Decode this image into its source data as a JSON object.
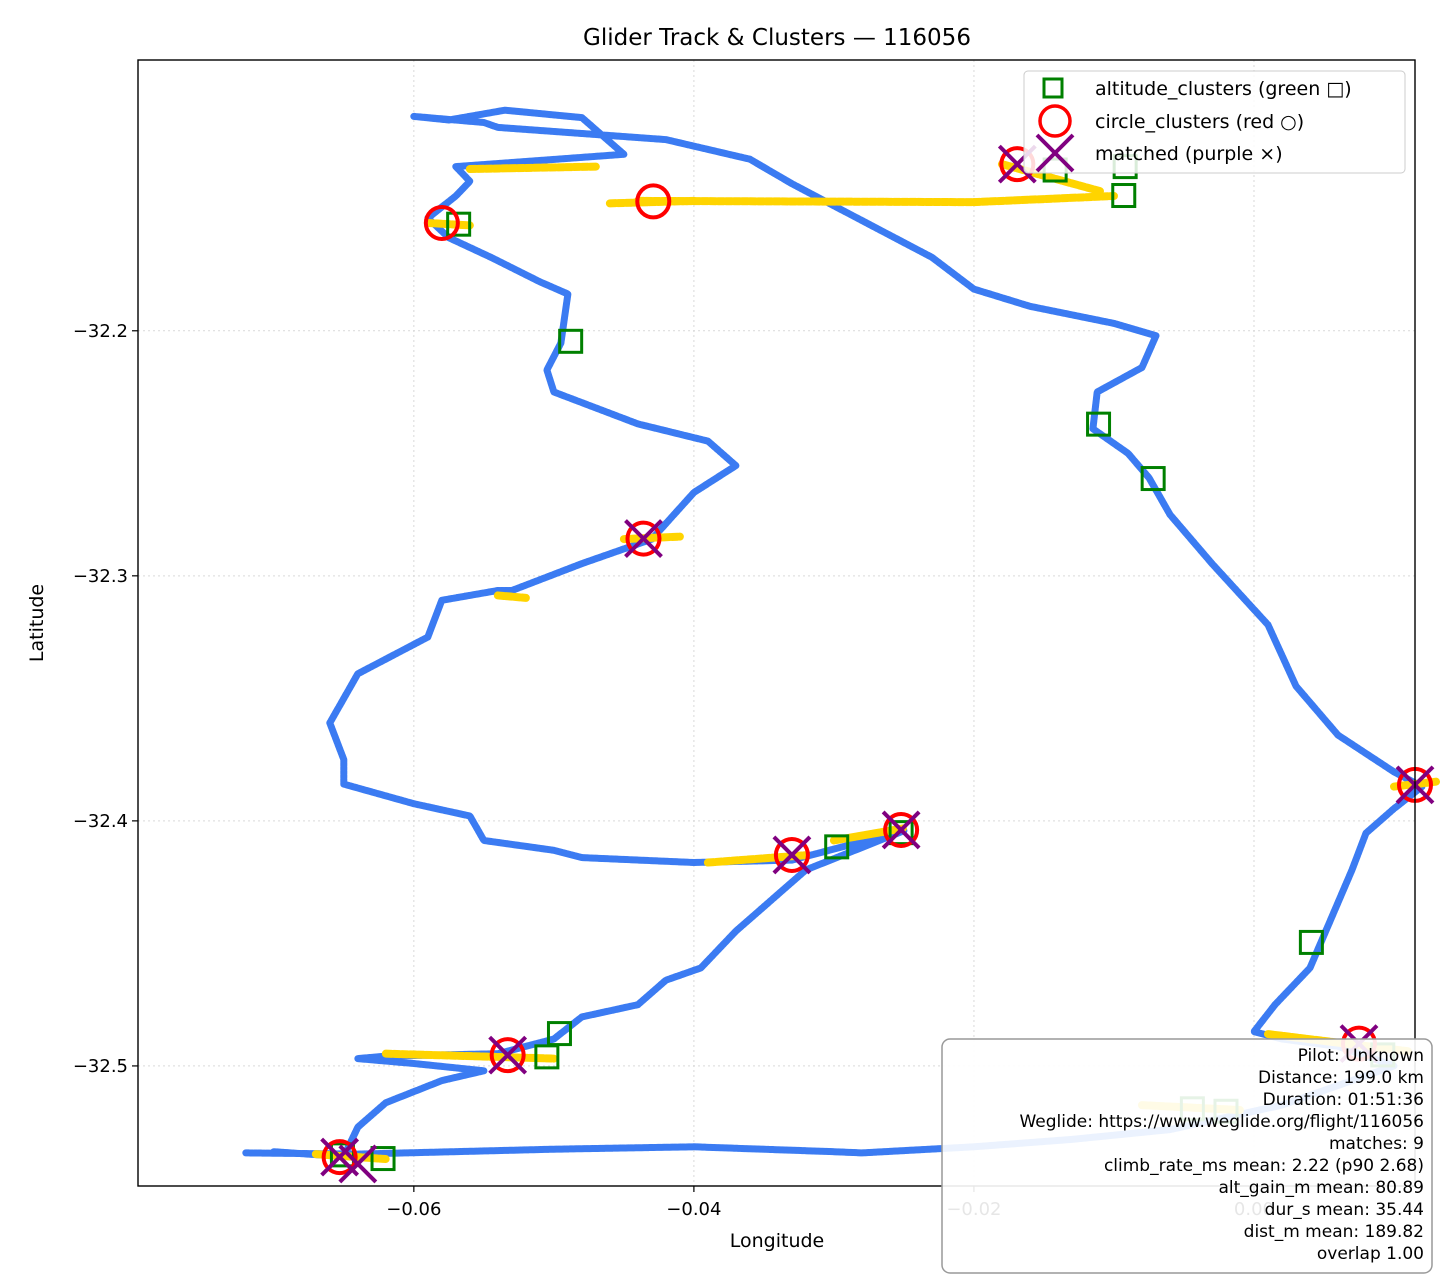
{
  "chart_data": {
    "type": "scatter",
    "title": "Glider Track & Clusters — 116056",
    "xlabel": "Longitude",
    "ylabel": "Latitude",
    "xlim": [
      -0.0797,
      0.0115
    ],
    "ylim": [
      -32.549,
      -32.0895
    ],
    "xticks": [
      -0.06,
      -0.04,
      -0.02,
      0.0
    ],
    "xtick_labels": [
      "−0.06",
      "−0.04",
      "−0.02",
      "0.00"
    ],
    "yticks": [
      -32.2,
      -32.3,
      -32.4,
      -32.5
    ],
    "ytick_labels": [
      "−32.2",
      "−32.3",
      "−32.4",
      "−32.5"
    ],
    "grid": true,
    "legend_placement": "upper-right",
    "colors": {
      "track_cruise": "#3b7bf2",
      "track_climb": "#ffd400",
      "altitude": "#008000",
      "circle": "#ff0000",
      "matched": "#800080",
      "grid": "#d9d9d9"
    },
    "series": [
      {
        "name": "altitude_clusters (green □)",
        "marker": "square",
        "x": [
          -0.0568,
          -0.0488,
          -0.0142,
          -0.0093,
          -0.0111,
          -0.0072,
          0.0041,
          -0.0092,
          -0.0298,
          -0.0252,
          -0.0496,
          -0.0505,
          -0.0651,
          -0.0622,
          -0.0044,
          -0.002,
          0.0092
        ],
        "y": [
          -32.1565,
          -32.2043,
          -32.1344,
          -32.1448,
          -32.2381,
          -32.2603,
          -32.4496,
          -32.133,
          -32.4106,
          -32.4048,
          -32.4868,
          -32.4963,
          -32.5363,
          -32.5378,
          -32.5175,
          -32.5185,
          -32.4955
        ]
      },
      {
        "name": "circle_clusters (red ○)",
        "marker": "circle",
        "x": [
          -0.058,
          -0.0429,
          -0.0169,
          -0.0436,
          0.0115,
          -0.033,
          -0.0252,
          -0.0533,
          -0.0653,
          0.0075
        ],
        "y": [
          -32.156,
          -32.1472,
          -32.132,
          -32.2848,
          -32.3853,
          -32.4139,
          -32.4037,
          -32.4956,
          -32.5372,
          -32.4909
        ]
      },
      {
        "name": "matched (purple ×)",
        "marker": "x",
        "x": [
          -0.0169,
          -0.0436,
          0.0115,
          -0.033,
          -0.0252,
          -0.0533,
          -0.0653,
          0.0075,
          -0.064
        ],
        "y": [
          -32.132,
          -32.2848,
          -32.3853,
          -32.4139,
          -32.4037,
          -32.4956,
          -32.5372,
          -32.4909,
          -32.54
        ]
      }
    ],
    "track": {
      "waypoints": [
        [
          -0.072,
          -32.5355
        ],
        [
          -0.064,
          -32.536
        ],
        [
          -0.05,
          -32.534
        ],
        [
          -0.04,
          -32.533
        ],
        [
          -0.03,
          -32.535
        ],
        [
          -0.028,
          -32.5355
        ],
        [
          -0.02,
          -32.533
        ],
        [
          -0.013,
          -32.53
        ],
        [
          -0.006,
          -32.526
        ],
        [
          0.002,
          -32.516
        ],
        [
          0.01,
          -32.5
        ],
        [
          0.006,
          -32.492
        ],
        [
          0.002,
          -32.489
        ],
        [
          0.0,
          -32.486
        ],
        [
          0.0015,
          -32.475
        ],
        [
          0.004,
          -32.46
        ],
        [
          0.0055,
          -32.44
        ],
        [
          0.007,
          -32.42
        ],
        [
          0.008,
          -32.405
        ],
        [
          0.01,
          -32.395
        ],
        [
          0.012,
          -32.386
        ],
        [
          0.01,
          -32.38
        ],
        [
          0.006,
          -32.365
        ],
        [
          0.003,
          -32.345
        ],
        [
          0.001,
          -32.32
        ],
        [
          -0.003,
          -32.295
        ],
        [
          -0.006,
          -32.275
        ],
        [
          -0.0075,
          -32.26
        ],
        [
          -0.009,
          -32.25
        ],
        [
          -0.0115,
          -32.24
        ],
        [
          -0.0112,
          -32.225
        ],
        [
          -0.008,
          -32.215
        ],
        [
          -0.007,
          -32.202
        ],
        [
          -0.01,
          -32.197
        ],
        [
          -0.016,
          -32.19
        ],
        [
          -0.02,
          -32.183
        ],
        [
          -0.023,
          -32.17
        ],
        [
          -0.028,
          -32.155
        ],
        [
          -0.033,
          -32.14
        ],
        [
          -0.036,
          -32.13
        ],
        [
          -0.042,
          -32.122
        ],
        [
          -0.054,
          -32.117
        ],
        [
          -0.055,
          -32.115
        ],
        [
          -0.06,
          -32.1125
        ],
        [
          -0.0575,
          -32.114
        ],
        [
          -0.0535,
          -32.11
        ],
        [
          -0.048,
          -32.113
        ],
        [
          -0.045,
          -32.128
        ],
        [
          -0.057,
          -32.133
        ],
        [
          -0.056,
          -32.139
        ],
        [
          -0.057,
          -32.145
        ],
        [
          -0.059,
          -32.154
        ],
        [
          -0.0575,
          -32.162
        ],
        [
          -0.0545,
          -32.17
        ],
        [
          -0.051,
          -32.18
        ],
        [
          -0.049,
          -32.185
        ],
        [
          -0.0495,
          -32.205
        ],
        [
          -0.0505,
          -32.216
        ],
        [
          -0.05,
          -32.225
        ],
        [
          -0.044,
          -32.238
        ],
        [
          -0.039,
          -32.245
        ],
        [
          -0.037,
          -32.255
        ],
        [
          -0.04,
          -32.266
        ],
        [
          -0.043,
          -32.285
        ],
        [
          -0.044,
          -32.287
        ],
        [
          -0.048,
          -32.295
        ],
        [
          -0.053,
          -32.306
        ],
        [
          -0.054,
          -32.306
        ],
        [
          -0.058,
          -32.31
        ],
        [
          -0.059,
          -32.325
        ],
        [
          -0.064,
          -32.34
        ],
        [
          -0.065,
          -32.35
        ],
        [
          -0.066,
          -32.36
        ],
        [
          -0.065,
          -32.375
        ],
        [
          -0.065,
          -32.385
        ],
        [
          -0.06,
          -32.393
        ],
        [
          -0.056,
          -32.398
        ],
        [
          -0.055,
          -32.408
        ],
        [
          -0.05,
          -32.412
        ],
        [
          -0.048,
          -32.415
        ],
        [
          -0.04,
          -32.417
        ],
        [
          -0.033,
          -32.416
        ],
        [
          -0.029,
          -32.41
        ],
        [
          -0.025,
          -32.404
        ],
        [
          -0.032,
          -32.42
        ],
        [
          -0.034,
          -32.43
        ],
        [
          -0.037,
          -32.445
        ],
        [
          -0.0395,
          -32.46
        ],
        [
          -0.042,
          -32.465
        ],
        [
          -0.044,
          -32.475
        ],
        [
          -0.048,
          -32.48
        ],
        [
          -0.05,
          -32.489
        ],
        [
          -0.054,
          -32.495
        ],
        [
          -0.062,
          -32.496
        ],
        [
          -0.064,
          -32.497
        ],
        [
          -0.06,
          -32.499
        ],
        [
          -0.055,
          -32.502
        ],
        [
          -0.058,
          -32.506
        ],
        [
          -0.062,
          -32.515
        ],
        [
          -0.064,
          -32.525
        ],
        [
          -0.065,
          -32.537
        ],
        [
          -0.07,
          -32.535
        ]
      ],
      "climb_segments": [
        [
          [
            -0.059,
            -32.156
          ],
          [
            -0.056,
            -32.157
          ]
        ],
        [
          [
            -0.046,
            -32.148
          ],
          [
            -0.04,
            -32.147
          ]
        ],
        [
          [
            -0.044,
            -32.147
          ],
          [
            -0.02,
            -32.1475
          ]
        ],
        [
          [
            -0.02,
            -32.1475
          ],
          [
            -0.01,
            -32.145
          ]
        ],
        [
          [
            -0.056,
            -32.134
          ],
          [
            -0.047,
            -32.133
          ]
        ],
        [
          [
            -0.018,
            -32.132
          ],
          [
            -0.011,
            -32.143
          ]
        ],
        [
          [
            -0.045,
            -32.285
          ],
          [
            -0.041,
            -32.284
          ]
        ],
        [
          [
            -0.054,
            -32.308
          ],
          [
            -0.052,
            -32.309
          ]
        ],
        [
          [
            -0.039,
            -32.417
          ],
          [
            -0.032,
            -32.414
          ]
        ],
        [
          [
            -0.03,
            -32.408
          ],
          [
            -0.025,
            -32.403
          ]
        ],
        [
          [
            -0.062,
            -32.495
          ],
          [
            -0.05,
            -32.497
          ]
        ],
        [
          [
            -0.067,
            -32.536
          ],
          [
            -0.062,
            -32.538
          ]
        ],
        [
          [
            0.001,
            -32.487
          ],
          [
            0.011,
            -32.494
          ]
        ],
        [
          [
            -0.008,
            -32.516
          ],
          [
            -0.001,
            -32.518
          ]
        ],
        [
          [
            0.01,
            -32.386
          ],
          [
            0.013,
            -32.384
          ]
        ]
      ]
    }
  },
  "stats_box": {
    "lines": [
      "Pilot: Unknown",
      "Distance: 199.0 km",
      "Duration: 01:51:36",
      "Weglide: https://www.weglide.org/flight/116056",
      "matches: 9",
      "climb_rate_ms mean: 2.22 (p90 2.68)",
      "alt_gain_m mean: 80.89",
      "dur_s mean: 35.44",
      "dist_m mean: 189.82",
      "overlap 1.00"
    ]
  }
}
